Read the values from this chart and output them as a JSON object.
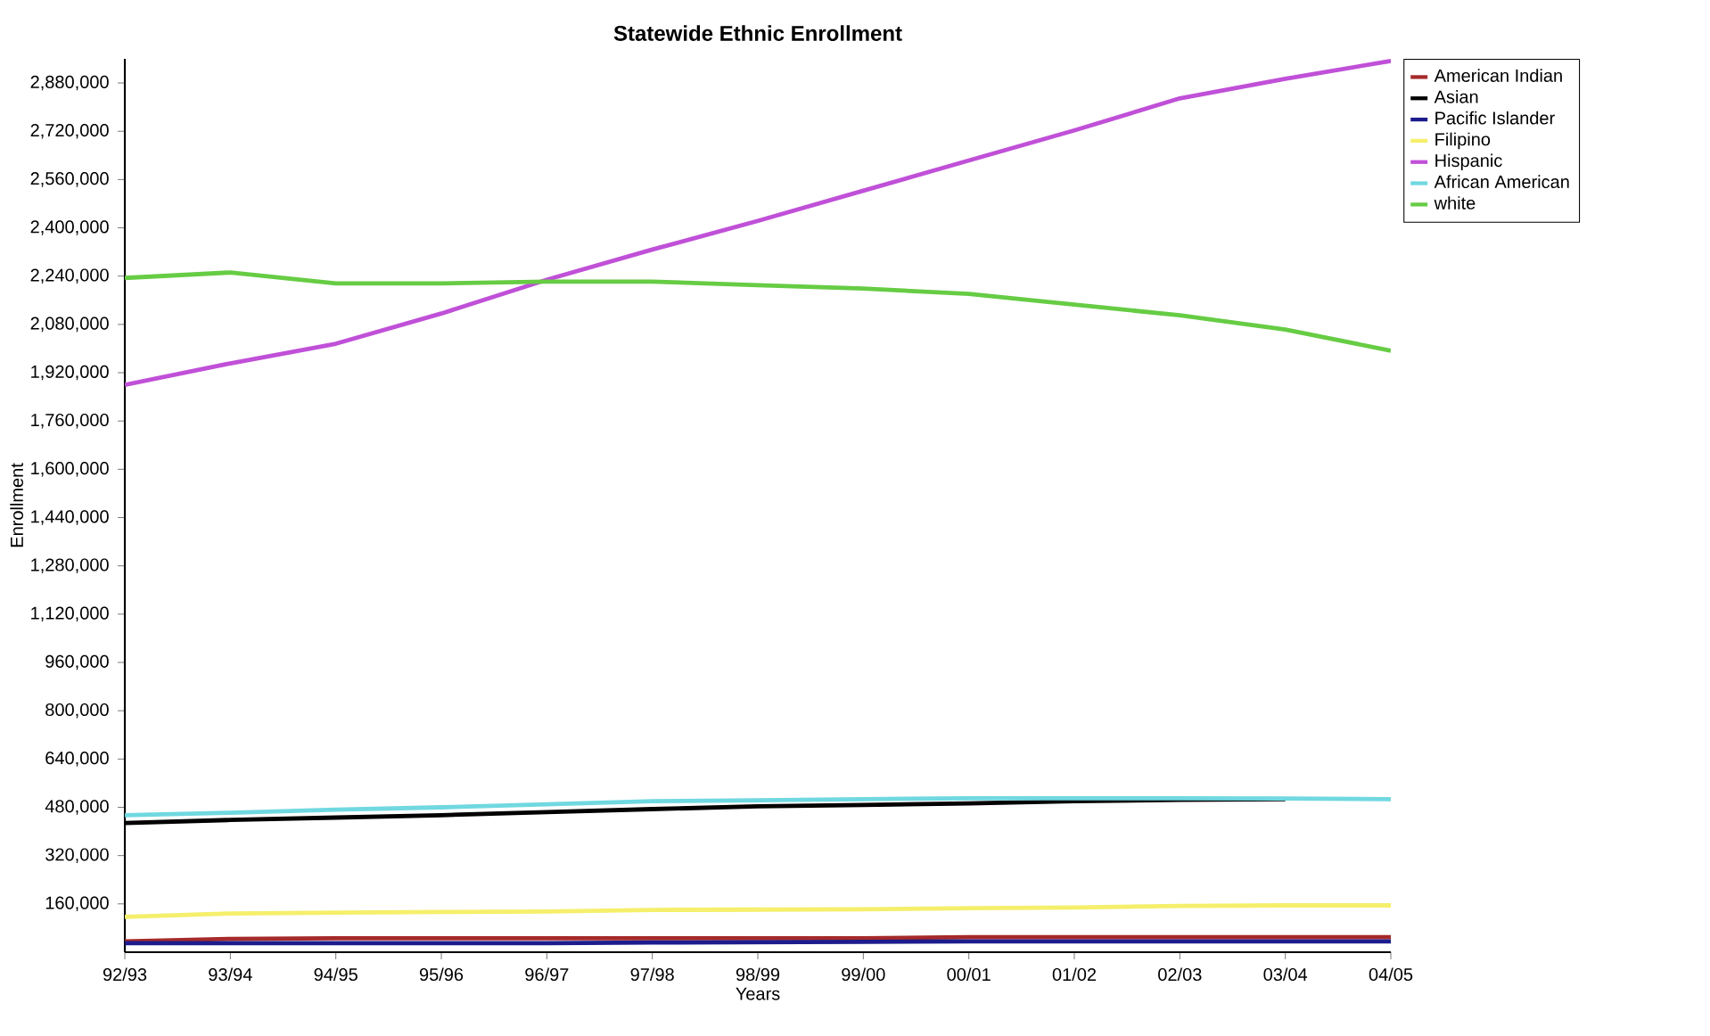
{
  "chart_data": {
    "type": "line",
    "title": "Statewide  Ethnic Enrollment",
    "xlabel": "Years",
    "ylabel": "Enrollment",
    "categories": [
      "92/93",
      "93/94",
      "94/95",
      "95/96",
      "96/97",
      "97/98",
      "98/99",
      "99/00",
      "00/01",
      "01/02",
      "02/03",
      "03/04",
      "04/05"
    ],
    "ylim": [
      0,
      2960000
    ],
    "yticks": [
      {
        "value": 160000,
        "label": "160,000"
      },
      {
        "value": 320000,
        "label": "320,000"
      },
      {
        "value": 480000,
        "label": "480,000"
      },
      {
        "value": 640000,
        "label": "640,000"
      },
      {
        "value": 800000,
        "label": "800,000"
      },
      {
        "value": 960000,
        "label": "960,000"
      },
      {
        "value": 1120000,
        "label": "1,120,000"
      },
      {
        "value": 1280000,
        "label": "1,280,000"
      },
      {
        "value": 1440000,
        "label": "1,440,000"
      },
      {
        "value": 1600000,
        "label": "1,600,000"
      },
      {
        "value": 1760000,
        "label": "1,760,000"
      },
      {
        "value": 1920000,
        "label": "1,920,000"
      },
      {
        "value": 2080000,
        "label": "2,080,000"
      },
      {
        "value": 2240000,
        "label": "2,240,000"
      },
      {
        "value": 2400000,
        "label": "2,400,000"
      },
      {
        "value": 2560000,
        "label": "2,560,000"
      },
      {
        "value": 2720000,
        "label": "2,720,000"
      },
      {
        "value": 2880000,
        "label": "2,880,000"
      }
    ],
    "legend": "top right",
    "grid": false,
    "marker": "none",
    "line_style": "solid",
    "series": [
      {
        "name": "American Indian",
        "color": "#a52a2a",
        "values": [
          36000,
          44000,
          46000,
          46000,
          46000,
          46000,
          46000,
          46000,
          50000,
          50000,
          50000,
          50000,
          50000
        ]
      },
      {
        "name": "Asian",
        "color": "#000000",
        "values": [
          428000,
          438000,
          446000,
          454000,
          464000,
          474000,
          483000,
          488000,
          493000,
          500000,
          505000,
          507000,
          null
        ]
      },
      {
        "name": "Pacific Islander",
        "color": "#1c1c8c",
        "values": [
          30000,
          30000,
          30000,
          30000,
          30000,
          32000,
          33000,
          34000,
          36000,
          36000,
          36000,
          36000,
          36000
        ]
      },
      {
        "name": "Filipino",
        "color": "#f5ef6b",
        "values": [
          117000,
          128000,
          131000,
          133000,
          135000,
          140000,
          141000,
          142000,
          146000,
          148000,
          153000,
          155000,
          155000
        ]
      },
      {
        "name": "Hispanic",
        "color": "#c050d8",
        "values": [
          1880000,
          1951000,
          2016000,
          2116000,
          2228000,
          2328000,
          2423000,
          2523000,
          2623000,
          2723000,
          2829000,
          2894000,
          2953000
        ]
      },
      {
        "name": "African American",
        "color": "#70d8e0",
        "values": [
          454000,
          462000,
          472000,
          480000,
          490000,
          500000,
          503000,
          507000,
          510000,
          510000,
          510000,
          509000,
          507000
        ]
      },
      {
        "name": "white",
        "color": "#66cc44",
        "values": [
          2234000,
          2252000,
          2216000,
          2216000,
          2222000,
          2222000,
          2210000,
          2199000,
          2181000,
          2146000,
          2110000,
          2063000,
          1993000
        ]
      }
    ]
  }
}
